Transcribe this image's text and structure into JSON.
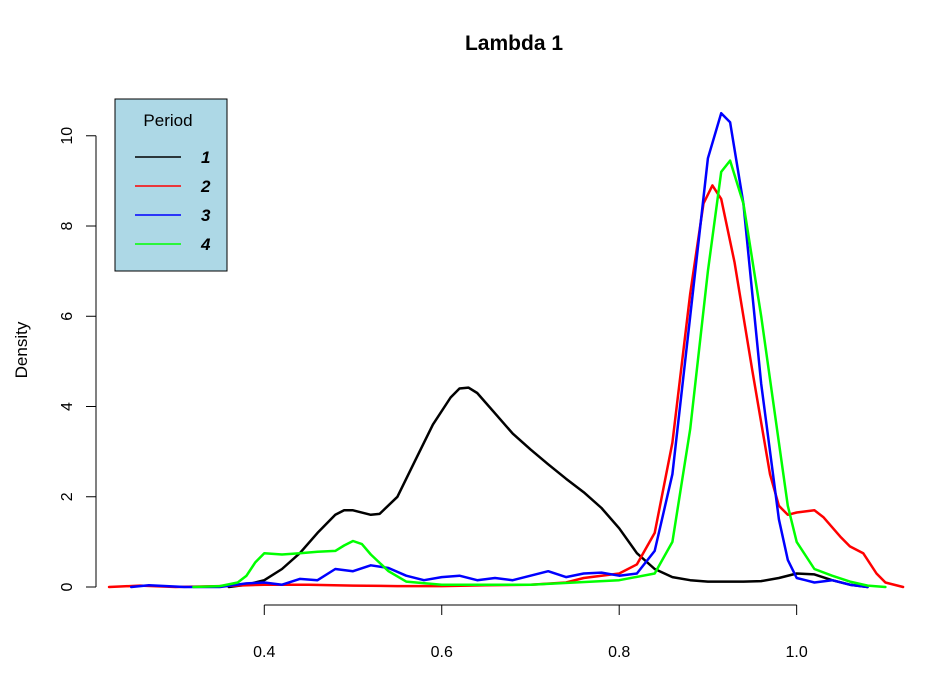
{
  "chart_data": {
    "type": "line",
    "title": "Lambda 1",
    "xlabel": "",
    "ylabel": "Density",
    "xlim": [
      0.225,
      1.14
    ],
    "ylim": [
      0,
      10.8
    ],
    "x_ticks": [
      0.4,
      0.6,
      0.8,
      1.0
    ],
    "x_tick_labels": [
      "0.4",
      "0.6",
      "0.8",
      "1.0"
    ],
    "y_ticks": [
      0,
      2,
      4,
      6,
      8,
      10
    ],
    "y_tick_labels": [
      "0",
      "2",
      "4",
      "6",
      "8",
      "10"
    ],
    "grid": false,
    "legend": {
      "title": "Period",
      "position": "top-left",
      "background": "#ADD8E6"
    },
    "series": [
      {
        "name": "1",
        "color": "#000000",
        "points": [
          [
            0.36,
            0.0
          ],
          [
            0.38,
            0.05
          ],
          [
            0.4,
            0.15
          ],
          [
            0.42,
            0.4
          ],
          [
            0.44,
            0.75
          ],
          [
            0.46,
            1.2
          ],
          [
            0.48,
            1.6
          ],
          [
            0.49,
            1.7
          ],
          [
            0.5,
            1.7
          ],
          [
            0.52,
            1.6
          ],
          [
            0.53,
            1.62
          ],
          [
            0.55,
            2.0
          ],
          [
            0.57,
            2.8
          ],
          [
            0.59,
            3.6
          ],
          [
            0.61,
            4.2
          ],
          [
            0.62,
            4.4
          ],
          [
            0.63,
            4.42
          ],
          [
            0.64,
            4.3
          ],
          [
            0.66,
            3.85
          ],
          [
            0.68,
            3.4
          ],
          [
            0.7,
            3.05
          ],
          [
            0.72,
            2.72
          ],
          [
            0.74,
            2.4
          ],
          [
            0.76,
            2.1
          ],
          [
            0.78,
            1.75
          ],
          [
            0.8,
            1.3
          ],
          [
            0.82,
            0.75
          ],
          [
            0.84,
            0.4
          ],
          [
            0.86,
            0.22
          ],
          [
            0.88,
            0.15
          ],
          [
            0.9,
            0.12
          ],
          [
            0.92,
            0.12
          ],
          [
            0.94,
            0.12
          ],
          [
            0.96,
            0.13
          ],
          [
            0.98,
            0.2
          ],
          [
            1.0,
            0.3
          ],
          [
            1.02,
            0.28
          ],
          [
            1.04,
            0.15
          ],
          [
            1.06,
            0.05
          ],
          [
            1.08,
            0.0
          ]
        ]
      },
      {
        "name": "2",
        "color": "#FF0000",
        "points": [
          [
            0.225,
            0.0
          ],
          [
            0.26,
            0.03
          ],
          [
            0.3,
            0.0
          ],
          [
            0.35,
            0.02
          ],
          [
            0.4,
            0.05
          ],
          [
            0.45,
            0.05
          ],
          [
            0.5,
            0.03
          ],
          [
            0.55,
            0.02
          ],
          [
            0.6,
            0.02
          ],
          [
            0.65,
            0.04
          ],
          [
            0.7,
            0.05
          ],
          [
            0.74,
            0.1
          ],
          [
            0.76,
            0.2
          ],
          [
            0.78,
            0.25
          ],
          [
            0.8,
            0.3
          ],
          [
            0.82,
            0.5
          ],
          [
            0.84,
            1.2
          ],
          [
            0.86,
            3.2
          ],
          [
            0.88,
            6.5
          ],
          [
            0.895,
            8.5
          ],
          [
            0.905,
            8.9
          ],
          [
            0.915,
            8.6
          ],
          [
            0.93,
            7.2
          ],
          [
            0.95,
            4.8
          ],
          [
            0.97,
            2.5
          ],
          [
            0.98,
            1.8
          ],
          [
            0.99,
            1.6
          ],
          [
            1.0,
            1.65
          ],
          [
            1.02,
            1.7
          ],
          [
            1.03,
            1.55
          ],
          [
            1.05,
            1.1
          ],
          [
            1.06,
            0.9
          ],
          [
            1.075,
            0.75
          ],
          [
            1.09,
            0.3
          ],
          [
            1.1,
            0.1
          ],
          [
            1.12,
            0.0
          ]
        ]
      },
      {
        "name": "3",
        "color": "#0000FF",
        "points": [
          [
            0.25,
            0.0
          ],
          [
            0.27,
            0.04
          ],
          [
            0.29,
            0.02
          ],
          [
            0.31,
            0.0
          ],
          [
            0.35,
            0.0
          ],
          [
            0.38,
            0.08
          ],
          [
            0.4,
            0.1
          ],
          [
            0.42,
            0.05
          ],
          [
            0.44,
            0.18
          ],
          [
            0.46,
            0.15
          ],
          [
            0.48,
            0.4
          ],
          [
            0.5,
            0.35
          ],
          [
            0.52,
            0.48
          ],
          [
            0.54,
            0.42
          ],
          [
            0.56,
            0.25
          ],
          [
            0.58,
            0.15
          ],
          [
            0.6,
            0.22
          ],
          [
            0.62,
            0.25
          ],
          [
            0.64,
            0.15
          ],
          [
            0.66,
            0.2
          ],
          [
            0.68,
            0.15
          ],
          [
            0.7,
            0.25
          ],
          [
            0.72,
            0.35
          ],
          [
            0.74,
            0.22
          ],
          [
            0.76,
            0.3
          ],
          [
            0.78,
            0.32
          ],
          [
            0.8,
            0.25
          ],
          [
            0.82,
            0.3
          ],
          [
            0.84,
            0.8
          ],
          [
            0.86,
            2.5
          ],
          [
            0.88,
            6.0
          ],
          [
            0.9,
            9.5
          ],
          [
            0.915,
            10.5
          ],
          [
            0.925,
            10.3
          ],
          [
            0.94,
            8.5
          ],
          [
            0.96,
            4.5
          ],
          [
            0.98,
            1.5
          ],
          [
            0.99,
            0.6
          ],
          [
            1.0,
            0.2
          ],
          [
            1.01,
            0.15
          ],
          [
            1.02,
            0.1
          ],
          [
            1.04,
            0.15
          ],
          [
            1.06,
            0.05
          ],
          [
            1.08,
            0.0
          ]
        ]
      },
      {
        "name": "4",
        "color": "#00FF00",
        "points": [
          [
            0.32,
            0.0
          ],
          [
            0.35,
            0.02
          ],
          [
            0.37,
            0.1
          ],
          [
            0.38,
            0.25
          ],
          [
            0.39,
            0.55
          ],
          [
            0.4,
            0.75
          ],
          [
            0.42,
            0.72
          ],
          [
            0.44,
            0.75
          ],
          [
            0.46,
            0.78
          ],
          [
            0.48,
            0.8
          ],
          [
            0.49,
            0.92
          ],
          [
            0.5,
            1.02
          ],
          [
            0.51,
            0.95
          ],
          [
            0.52,
            0.72
          ],
          [
            0.54,
            0.35
          ],
          [
            0.56,
            0.12
          ],
          [
            0.6,
            0.05
          ],
          [
            0.65,
            0.05
          ],
          [
            0.7,
            0.05
          ],
          [
            0.75,
            0.1
          ],
          [
            0.8,
            0.15
          ],
          [
            0.84,
            0.3
          ],
          [
            0.86,
            1.0
          ],
          [
            0.88,
            3.5
          ],
          [
            0.9,
            7.0
          ],
          [
            0.915,
            9.2
          ],
          [
            0.925,
            9.45
          ],
          [
            0.94,
            8.5
          ],
          [
            0.96,
            6.0
          ],
          [
            0.98,
            3.2
          ],
          [
            0.99,
            1.8
          ],
          [
            1.0,
            1.0
          ],
          [
            1.02,
            0.4
          ],
          [
            1.04,
            0.25
          ],
          [
            1.06,
            0.12
          ],
          [
            1.08,
            0.03
          ],
          [
            1.1,
            0.0
          ]
        ]
      }
    ]
  }
}
